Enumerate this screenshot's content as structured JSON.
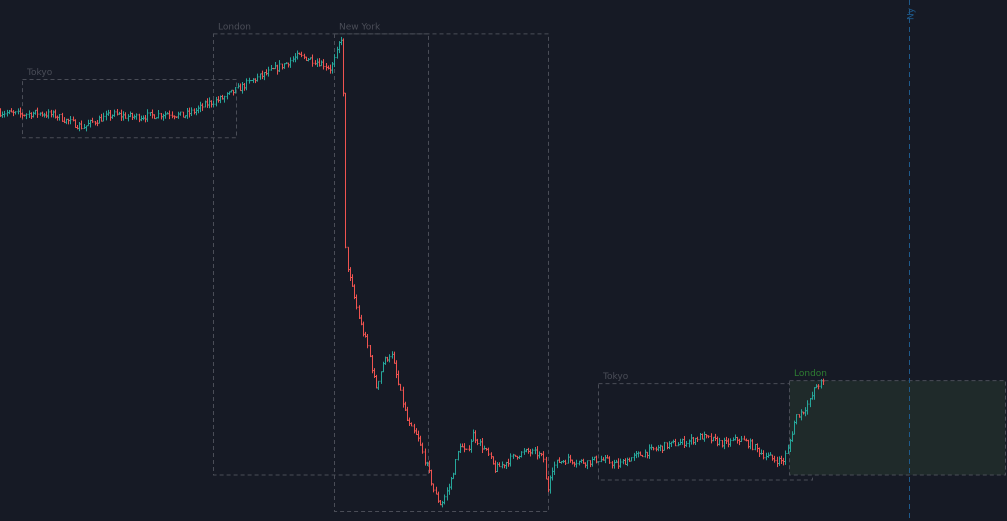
{
  "colors": {
    "background": "#161a25",
    "up": "#26a69a",
    "down": "#ef5350",
    "session_box": "#4a4d57",
    "session_label": "#4a4d57",
    "active_label": "#2e7d32",
    "active_fill": "#1f2a2a",
    "marker": "#1e5a8c"
  },
  "chart_data": {
    "type": "ohlc",
    "title": "",
    "xlabel": "",
    "ylabel": "",
    "ylim": [
      0,
      1
    ],
    "x_range": [
      0,
      1007
    ],
    "grid": false,
    "legend": "none",
    "path": [
      [
        0,
        0.795
      ],
      [
        22,
        0.79
      ],
      [
        40,
        0.793
      ],
      [
        58,
        0.788
      ],
      [
        72,
        0.775
      ],
      [
        85,
        0.765
      ],
      [
        100,
        0.78
      ],
      [
        115,
        0.79
      ],
      [
        135,
        0.785
      ],
      [
        155,
        0.788
      ],
      [
        170,
        0.793
      ],
      [
        185,
        0.787
      ],
      [
        200,
        0.8
      ],
      [
        210,
        0.812
      ],
      [
        225,
        0.822
      ],
      [
        240,
        0.84
      ],
      [
        255,
        0.858
      ],
      [
        270,
        0.872
      ],
      [
        285,
        0.888
      ],
      [
        300,
        0.905
      ],
      [
        312,
        0.9
      ],
      [
        325,
        0.89
      ],
      [
        333,
        0.88
      ],
      [
        338,
        0.905
      ],
      [
        343,
        0.945
      ],
      [
        345,
        0.905
      ],
      [
        347,
        0.54
      ],
      [
        350,
        0.48
      ],
      [
        355,
        0.44
      ],
      [
        362,
        0.38
      ],
      [
        370,
        0.33
      ],
      [
        378,
        0.25
      ],
      [
        385,
        0.3
      ],
      [
        393,
        0.32
      ],
      [
        400,
        0.26
      ],
      [
        410,
        0.18
      ],
      [
        420,
        0.15
      ],
      [
        430,
        0.09
      ],
      [
        437,
        0.04
      ],
      [
        443,
        0.02
      ],
      [
        452,
        0.06
      ],
      [
        462,
        0.14
      ],
      [
        468,
        0.12
      ],
      [
        475,
        0.16
      ],
      [
        482,
        0.14
      ],
      [
        490,
        0.12
      ],
      [
        497,
        0.09
      ],
      [
        505,
        0.1
      ],
      [
        512,
        0.11
      ],
      [
        520,
        0.12
      ],
      [
        530,
        0.125
      ],
      [
        540,
        0.12
      ],
      [
        546,
        0.11
      ],
      [
        549,
        0.04
      ],
      [
        553,
        0.09
      ],
      [
        560,
        0.105
      ],
      [
        570,
        0.11
      ],
      [
        580,
        0.105
      ],
      [
        590,
        0.105
      ],
      [
        600,
        0.11
      ],
      [
        610,
        0.106
      ],
      [
        620,
        0.098
      ],
      [
        630,
        0.11
      ],
      [
        650,
        0.125
      ],
      [
        670,
        0.138
      ],
      [
        690,
        0.145
      ],
      [
        703,
        0.155
      ],
      [
        715,
        0.147
      ],
      [
        728,
        0.14
      ],
      [
        740,
        0.15
      ],
      [
        752,
        0.14
      ],
      [
        765,
        0.12
      ],
      [
        775,
        0.11
      ],
      [
        785,
        0.106
      ],
      [
        790,
        0.13
      ],
      [
        798,
        0.195
      ],
      [
        805,
        0.205
      ],
      [
        812,
        0.225
      ],
      [
        818,
        0.255
      ],
      [
        823,
        0.26
      ]
    ],
    "sessions": [
      {
        "label": "Tokyo",
        "x": [
          22,
          236
        ],
        "y": [
          0.745,
          0.86
        ]
      },
      {
        "label": "London",
        "x": [
          213,
          428
        ],
        "y": [
          0.08,
          0.95
        ]
      },
      {
        "label": "New York",
        "x": [
          334,
          548
        ],
        "y": [
          0.008,
          0.95
        ]
      },
      {
        "label": "Tokyo",
        "x": [
          598,
          812
        ],
        "y": [
          0.07,
          0.26
        ]
      },
      {
        "label": "London",
        "x": [
          789,
          1005
        ],
        "y": [
          0.08,
          0.266
        ],
        "active": true
      }
    ],
    "marker": {
      "label": "Ny",
      "x": 909
    }
  }
}
